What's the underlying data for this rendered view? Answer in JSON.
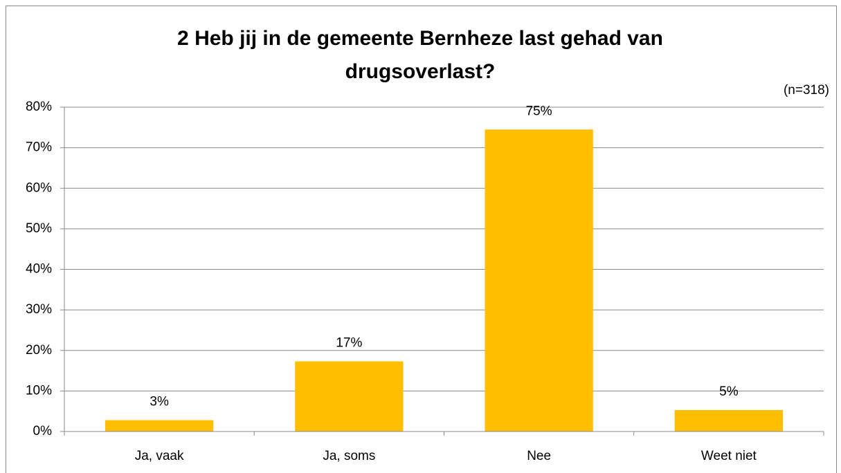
{
  "chart_data": {
    "type": "bar",
    "title": "2 Heb jij in de gemeente Bernheze last gehad van drugsoverlast?",
    "subtitle": "(n=318)",
    "categories": [
      "Ja, vaak",
      "Ja, soms",
      "Nee",
      "Weet niet"
    ],
    "values": [
      2.8,
      17.3,
      74.5,
      5.3
    ],
    "value_labels": [
      "3%",
      "17%",
      "75%",
      "5%"
    ],
    "color": "#ffbf00",
    "ylim": [
      0,
      80
    ],
    "yticks": [
      {
        "value": 0,
        "label": "0%"
      },
      {
        "value": 10,
        "label": "10%"
      },
      {
        "value": 20,
        "label": "20%"
      },
      {
        "value": 30,
        "label": "30%"
      },
      {
        "value": 40,
        "label": "40%"
      },
      {
        "value": 50,
        "label": "50%"
      },
      {
        "value": 60,
        "label": "60%"
      },
      {
        "value": 70,
        "label": "70%"
      },
      {
        "value": 80,
        "label": "80%"
      }
    ],
    "grid": true
  }
}
